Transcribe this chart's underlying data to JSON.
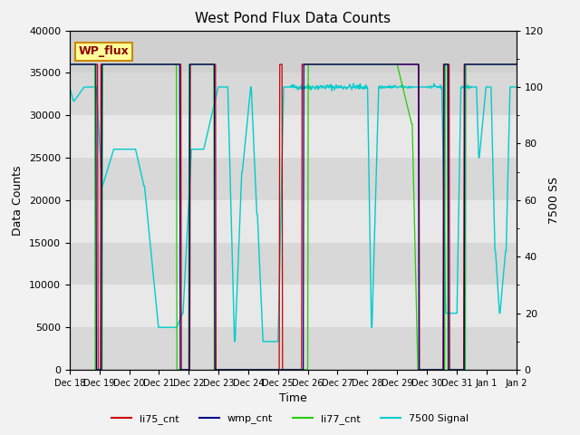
{
  "title": "West Pond Flux Data Counts",
  "xlabel": "Time",
  "ylabel_left": "Data Counts",
  "ylabel_right": "7500 SS",
  "ylim_left": [
    0,
    40000
  ],
  "ylim_right": [
    0,
    120
  ],
  "bg_color": "#f2f2f2",
  "plot_bg_light": "#e8e8e8",
  "plot_bg_dark": "#d4d4d4",
  "legend_labels": [
    "li75_cnt",
    "wmp_cnt",
    "li77_cnt",
    "7500 Signal"
  ],
  "legend_colors": [
    "#cc0000",
    "#00008b",
    "#00cc00",
    "#00cccc"
  ],
  "wp_flux_label": "WP_flux",
  "wp_flux_bg": "#ffff99",
  "wp_flux_border": "#cc8800",
  "n_points": 800,
  "xtick_labels": [
    "Dec 18",
    "Dec 19",
    "Dec 20",
    "Dec 21",
    "Dec 22",
    "Dec 23",
    "Dec 24",
    "Dec 25",
    "Dec 26",
    "Dec 27",
    "Dec 28",
    "Dec 29",
    "Dec 30",
    "Dec 31",
    "Jan 1",
    "Jan 2"
  ]
}
